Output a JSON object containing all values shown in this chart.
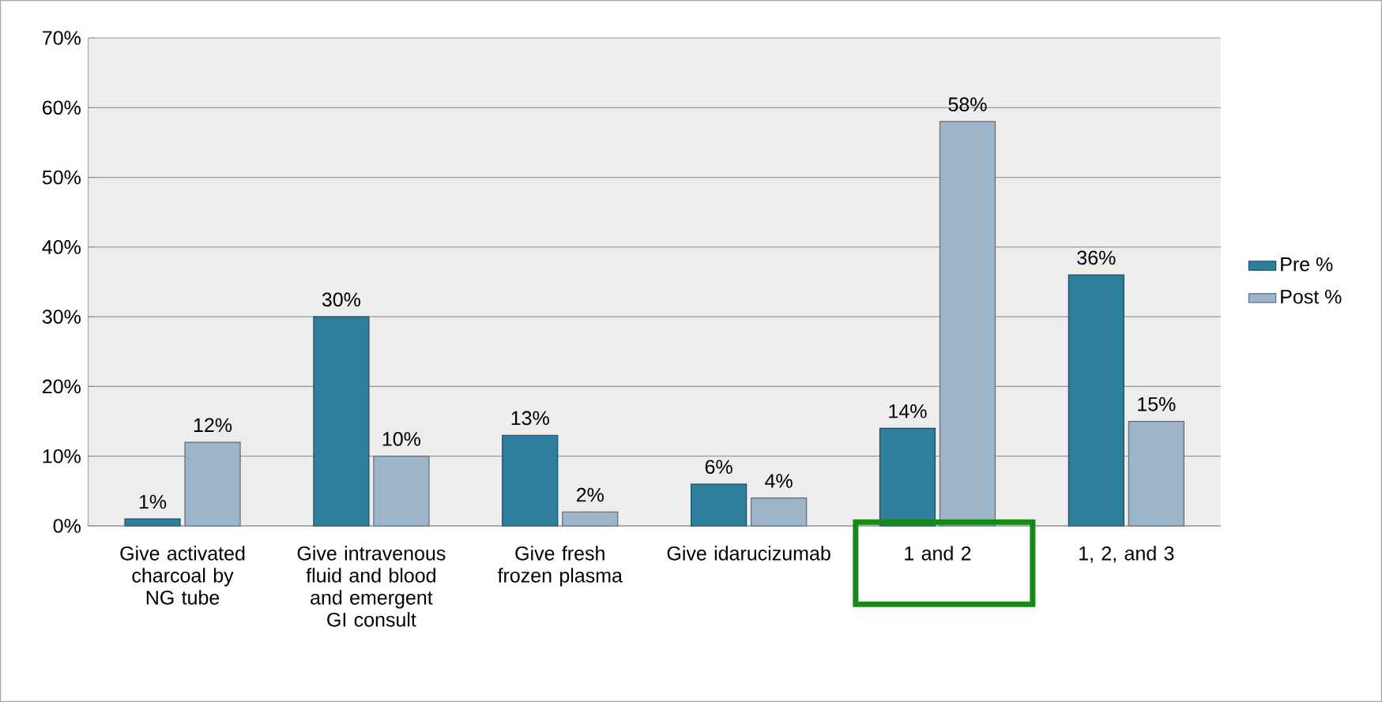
{
  "chart_data": {
    "type": "bar",
    "categories": [
      "Give activated charcoal by NG tube",
      "Give intravenous fluid and blood and emergent GI consult",
      "Give fresh frozen plasma",
      "Give idarucizumab",
      "1 and 2",
      "1, 2, and 3"
    ],
    "series": [
      {
        "name": "Pre %",
        "color": "#2e7f9e",
        "values": [
          1,
          30,
          13,
          6,
          14,
          36
        ],
        "value_labels": [
          "1%",
          "30%",
          "13%",
          "6%",
          "14%",
          "36%"
        ]
      },
      {
        "name": "Post %",
        "color": "#9db5c8",
        "values": [
          12,
          10,
          2,
          4,
          58,
          15
        ],
        "value_labels": [
          "12%",
          "10%",
          "2%",
          "4%",
          "58%",
          "15%"
        ]
      }
    ],
    "ylim": [
      0,
      70
    ],
    "yticks": [
      {
        "value": 0,
        "label": "0%"
      },
      {
        "value": 10,
        "label": "10%"
      },
      {
        "value": 20,
        "label": "20%"
      },
      {
        "value": 30,
        "label": "30%"
      },
      {
        "value": 40,
        "label": "40%"
      },
      {
        "value": 50,
        "label": "50%"
      },
      {
        "value": 60,
        "label": "60%"
      },
      {
        "value": 70,
        "label": "70%"
      }
    ],
    "grid": "y",
    "legend": "right"
  }
}
